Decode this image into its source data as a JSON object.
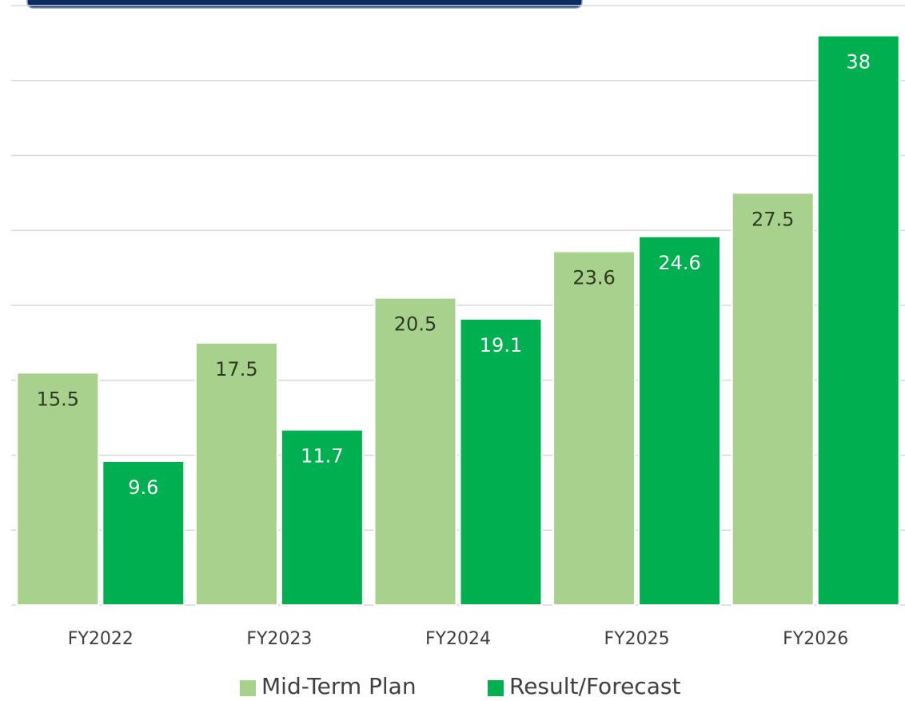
{
  "chart_data": {
    "type": "bar",
    "categories": [
      "FY2022",
      "FY2023",
      "FY2024",
      "FY2025",
      "FY2026"
    ],
    "series": [
      {
        "name": "Mid-Term Plan",
        "color": "#a9d18e",
        "values": [
          15.5,
          17.5,
          20.5,
          23.6,
          27.5
        ]
      },
      {
        "name": "Result/Forecast",
        "color": "#00b050",
        "values": [
          9.6,
          11.7,
          19.1,
          24.6,
          38
        ]
      }
    ],
    "ylim": [
      0,
      40
    ],
    "yticks": [
      0,
      5,
      10,
      15,
      20,
      25,
      30,
      35,
      40
    ],
    "grid": true,
    "legend": "bottom"
  }
}
